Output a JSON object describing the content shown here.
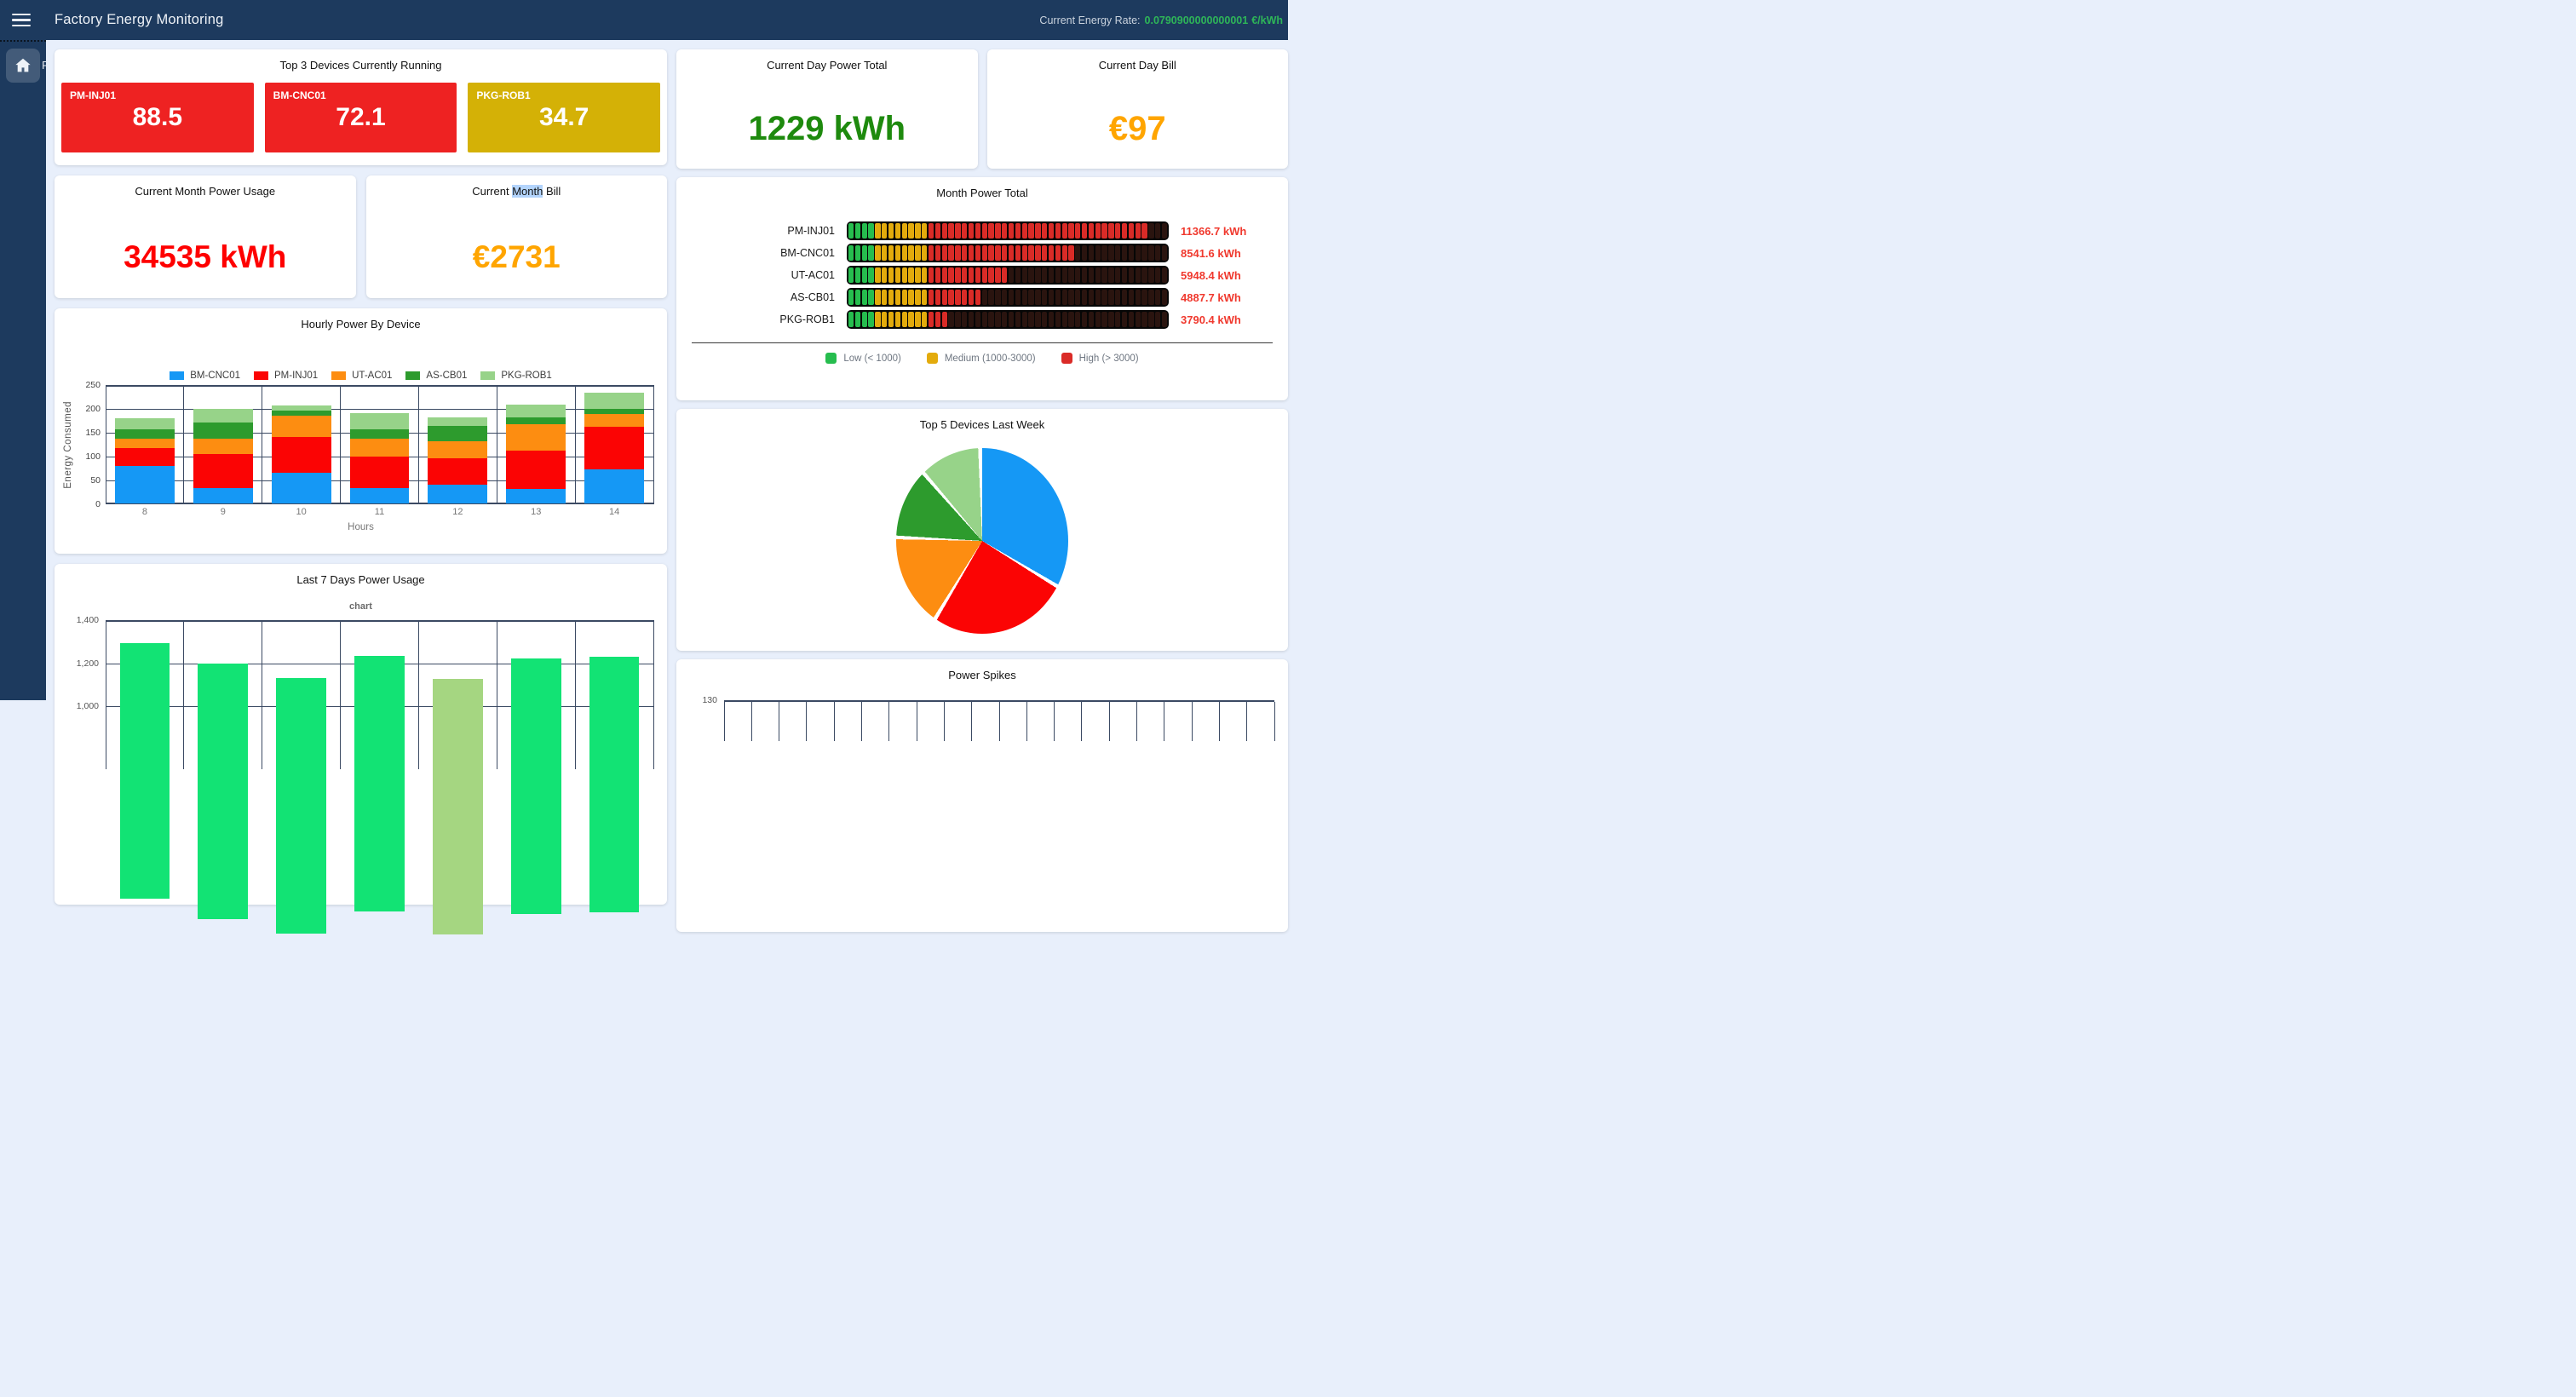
{
  "navbar": {
    "title": "Factory Energy Monitoring",
    "rate_label": "Current Energy Rate:",
    "rate_value": "0.0790900000000001",
    "rate_unit": "€/kWh",
    "bg_color": "#1d3a5e",
    "rate_color": "#2eb558"
  },
  "sidebar": {
    "clipped_item_label": "F"
  },
  "top3": {
    "title": "Top 3 Devices Currently Running",
    "tiles": [
      {
        "name": "PM-INJ01",
        "value": "88.5",
        "color": "#ee2222"
      },
      {
        "name": "BM-CNC01",
        "value": "72.1",
        "color": "#ee2222"
      },
      {
        "name": "PKG-ROB1",
        "value": "34.7",
        "color": "#d4b106"
      }
    ]
  },
  "stats": {
    "day_total": {
      "title": "Current Day Power Total",
      "value": "1229 kWh",
      "color": "#1e8a0e"
    },
    "day_bill": {
      "title": "Current Day Bill",
      "value": "€97",
      "color": "#ffa500"
    },
    "month_usage": {
      "title": "Current Month Power Usage",
      "value": "34535 kWh",
      "color": "#fe0000"
    },
    "month_bill": {
      "title_pre": "Current ",
      "title_highlight": "Month",
      "title_post": " Bill",
      "value": "€2731",
      "color": "#ffa500"
    }
  },
  "chart_data": [
    {
      "id": "hourly",
      "type": "bar",
      "stacked": true,
      "title": "Hourly Power By Device",
      "xlabel": "Hours",
      "ylabel": "Energy Consumed",
      "ylim": [
        0,
        250
      ],
      "yticks": [
        0,
        50,
        100,
        150,
        200,
        250
      ],
      "grid": true,
      "legend_position": "top",
      "categories": [
        "8",
        "9",
        "10",
        "11",
        "12",
        "13",
        "14"
      ],
      "series": [
        {
          "name": "BM-CNC01",
          "color": "#1598f5",
          "values": [
            79,
            33,
            64,
            33,
            40,
            30,
            72
          ]
        },
        {
          "name": "PM-INJ01",
          "color": "#fb0404",
          "values": [
            38,
            71,
            75,
            65,
            55,
            81,
            88
          ]
        },
        {
          "name": "UT-AC01",
          "color": "#fd8d11",
          "values": [
            19,
            32,
            45,
            38,
            36,
            55,
            27
          ]
        },
        {
          "name": "AS-CB01",
          "color": "#2d9b2d",
          "values": [
            20,
            34,
            10,
            20,
            32,
            15,
            12
          ]
        },
        {
          "name": "PKG-ROB1",
          "color": "#97d389",
          "values": [
            23,
            29,
            12,
            34,
            17,
            27,
            34
          ]
        }
      ]
    },
    {
      "id": "last7",
      "type": "bar",
      "title": "Last 7 Days Power Usage",
      "subtitle": "chart",
      "yticks_visible": [
        "1,400",
        "1,200",
        "1,000"
      ],
      "ytick_values": [
        1400,
        1200,
        1000
      ],
      "values": [
        1295,
        1200,
        1130,
        1235,
        1125,
        1220,
        1230
      ],
      "bar_colors": [
        "#12e374",
        "#12e374",
        "#12e374",
        "#12e374",
        "#a5d681",
        "#12e374",
        "#12e374"
      ],
      "grid": true,
      "note": "bottom of chart cropped by viewport"
    },
    {
      "id": "pie",
      "type": "pie",
      "title": "Top 5 Devices Last Week",
      "slices": [
        {
          "label": "BM-CNC01",
          "pct": 34,
          "color": "#1598f5"
        },
        {
          "label": "PM-INJ01",
          "pct": 25,
          "color": "#fb0404"
        },
        {
          "label": "UT-AC01",
          "pct": 17,
          "color": "#fd8d11"
        },
        {
          "label": "AS-CB01",
          "pct": 13,
          "color": "#2d9b2d"
        },
        {
          "label": "PKG-ROB1",
          "pct": 11,
          "color": "#97d389"
        }
      ]
    },
    {
      "id": "month_gauge",
      "type": "table",
      "title": "Month Power Total",
      "total_segments": 48,
      "segment_colors": {
        "on_green": "#26bd4e",
        "on_yellow": "#e3ab0c",
        "on_red": "#da2b27",
        "off": "#2a140f"
      },
      "rows": [
        {
          "device": "PM-INJ01",
          "value_label": "11366.7 kWh",
          "value": 11366.7,
          "green": 4,
          "yellow": 8,
          "red": 33
        },
        {
          "device": "BM-CNC01",
          "value_label": "8541.6 kWh",
          "value": 8541.6,
          "green": 4,
          "yellow": 8,
          "red": 22
        },
        {
          "device": "UT-AC01",
          "value_label": "5948.4 kWh",
          "value": 5948.4,
          "green": 4,
          "yellow": 8,
          "red": 12
        },
        {
          "device": "AS-CB01",
          "value_label": "4887.7 kWh",
          "value": 4887.7,
          "green": 4,
          "yellow": 8,
          "red": 8
        },
        {
          "device": "PKG-ROB1",
          "value_label": "3790.4 kWh",
          "value": 3790.4,
          "green": 4,
          "yellow": 8,
          "red": 3
        }
      ],
      "legend": [
        {
          "label": "Low (< 1000)",
          "color": "#26bd4e"
        },
        {
          "label": "Medium (1000-3000)",
          "color": "#e3ab0c"
        },
        {
          "label": "High (> 3000)",
          "color": "#da2b27"
        }
      ]
    },
    {
      "id": "spikes",
      "type": "line",
      "title": "Power Spikes",
      "first_ytick": "130",
      "note": "only top edge of chart visible in viewport"
    }
  ]
}
